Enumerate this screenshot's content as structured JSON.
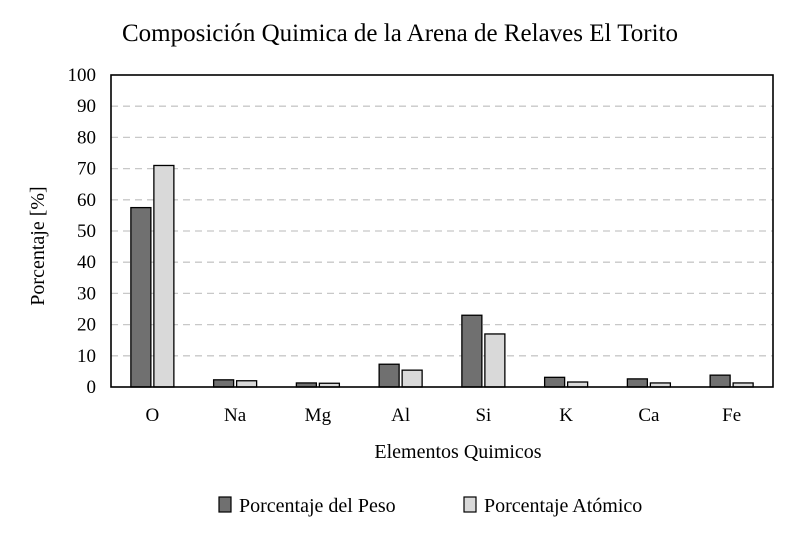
{
  "chart_data": {
    "type": "bar",
    "title": "Composición Quimica de la Arena de Relaves El Torito",
    "xlabel": "Elementos Quimicos",
    "ylabel": "Porcentaje [%]",
    "ylim": [
      0,
      100
    ],
    "yticks": [
      "0",
      "10",
      "20",
      "30",
      "40",
      "50",
      "60",
      "70",
      "80",
      "90",
      "100"
    ],
    "grid": true,
    "legend_position": "bottom",
    "categories": [
      "O",
      "Na",
      "Mg",
      "Al",
      "Si",
      "K",
      "Ca",
      "Fe"
    ],
    "series": [
      {
        "name": "Porcentaje del Peso",
        "color": "#707070",
        "values": [
          57.5,
          2.3,
          1.3,
          7.3,
          23,
          3.1,
          2.6,
          3.8
        ]
      },
      {
        "name": "Porcentaje Atómico",
        "color": "#d9d9d9",
        "values": [
          71,
          2.0,
          1.2,
          5.4,
          17,
          1.6,
          1.3,
          1.3
        ]
      }
    ]
  }
}
